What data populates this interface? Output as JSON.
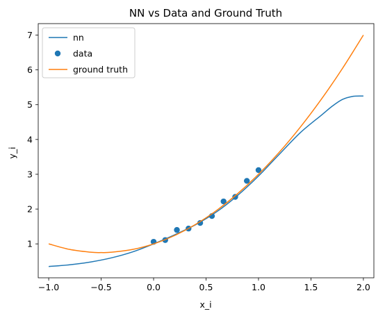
{
  "chart_data": {
    "type": "line",
    "title": "NN vs Data and Ground Truth",
    "xlabel": "x_i",
    "ylabel": "y_i",
    "xlim": [
      -1.1,
      2.1
    ],
    "ylim": [
      0.025,
      7.33
    ],
    "xticks": [
      -1.0,
      -0.5,
      0.0,
      0.5,
      1.0,
      1.5,
      2.0
    ],
    "xtick_labels": [
      "−1.0",
      "−0.5",
      "0.0",
      "0.5",
      "1.0",
      "1.5",
      "2.0"
    ],
    "yticks": [
      1,
      2,
      3,
      4,
      5,
      6,
      7
    ],
    "ytick_labels": [
      "1",
      "2",
      "3",
      "4",
      "5",
      "6",
      "7"
    ],
    "grid": false,
    "legend_position": "top-left",
    "series": [
      {
        "name": "nn",
        "kind": "line",
        "color": "#1f77b4",
        "x": [
          -1.0,
          -0.8,
          -0.6,
          -0.4,
          -0.2,
          0.0,
          0.2,
          0.4,
          0.6,
          0.8,
          1.0,
          1.2,
          1.4,
          1.6,
          1.7,
          1.8,
          1.9,
          2.0
        ],
        "y": [
          0.35,
          0.4,
          0.48,
          0.6,
          0.77,
          1.0,
          1.26,
          1.55,
          1.92,
          2.39,
          2.95,
          3.58,
          4.2,
          4.7,
          4.95,
          5.15,
          5.24,
          5.25
        ]
      },
      {
        "name": "data",
        "kind": "scatter",
        "color": "#1f77b4",
        "x": [
          0.0,
          0.111,
          0.222,
          0.333,
          0.444,
          0.556,
          0.667,
          0.778,
          0.889,
          1.0
        ],
        "y": [
          1.06,
          1.11,
          1.4,
          1.44,
          1.6,
          1.8,
          2.22,
          2.35,
          2.81,
          3.12
        ]
      },
      {
        "name": "ground truth",
        "kind": "line",
        "color": "#ff7f0e",
        "x": [
          -1.0,
          -0.8,
          -0.6,
          -0.5,
          -0.4,
          -0.2,
          0.0,
          0.2,
          0.4,
          0.6,
          0.8,
          1.0,
          1.2,
          1.4,
          1.6,
          1.8,
          2.0
        ],
        "y": [
          1.0,
          0.84,
          0.76,
          0.75,
          0.76,
          0.84,
          1.0,
          1.24,
          1.56,
          1.96,
          2.44,
          3.0,
          3.64,
          4.36,
          5.16,
          6.04,
          7.0
        ]
      }
    ]
  }
}
